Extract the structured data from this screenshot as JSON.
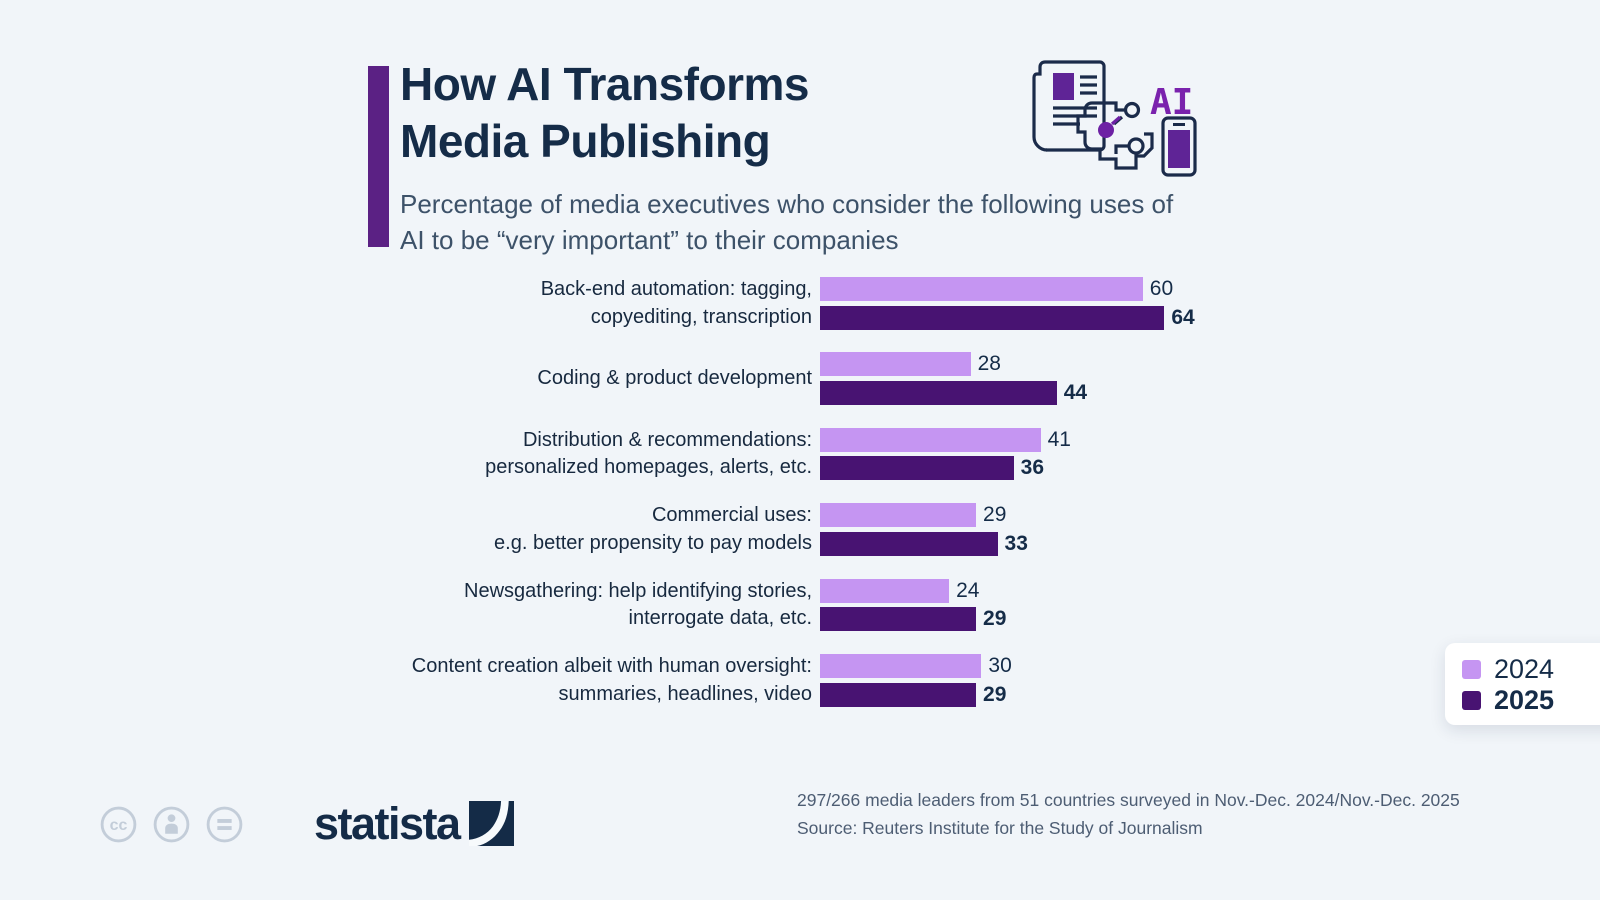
{
  "header": {
    "title_line1": "How AI Transforms",
    "title_line2": "Media Publishing",
    "subtitle": "Percentage of media executives who consider the following uses of AI to be “very important” to their companies"
  },
  "chart_data": {
    "type": "bar",
    "orientation": "horizontal",
    "categories": [
      [
        "Back-end automation: tagging,",
        "copyediting, transcription"
      ],
      [
        "Coding & product development"
      ],
      [
        "Distribution & recommendations:",
        "personalized homepages, alerts, etc."
      ],
      [
        "Commercial uses:",
        "e.g. better propensity to pay models"
      ],
      [
        "Newsgathering: help identifying stories,",
        "interrogate data, etc."
      ],
      [
        "Content creation albeit with human oversight:",
        "summaries, headlines, video"
      ]
    ],
    "series": [
      {
        "name": "2024",
        "color": "#c595f2",
        "bold_values": false,
        "values": [
          60,
          28,
          41,
          29,
          24,
          30
        ]
      },
      {
        "name": "2025",
        "color": "#481372",
        "bold_values": true,
        "values": [
          64,
          44,
          36,
          33,
          29,
          29
        ]
      }
    ],
    "value_axis_max": 64,
    "grid": false,
    "data_labels": true,
    "legend_position": "right",
    "unit": "percent of media executives"
  },
  "legend": {
    "items": [
      {
        "label": "2024",
        "color": "#c595f2",
        "bold": false
      },
      {
        "label": "2025",
        "color": "#481372",
        "bold": true
      }
    ]
  },
  "footer": {
    "note": "297/266 media leaders from 51 countries surveyed in Nov.-Dec. 2024/Nov.-Dec. 2025",
    "source": "Source: Reuters Institute for the Study of Journalism",
    "brand": "statista"
  },
  "icons": {
    "top_right": "ai-media-publishing-illustration",
    "license": [
      "cc-icon",
      "attribution-person-icon",
      "equals-icon"
    ],
    "brand_mark": "statista-swoosh-icon"
  },
  "colors": {
    "background": "#f1f5f9",
    "title": "#152c48",
    "subtitle": "#3d5269",
    "accent_bar": "#5b2184",
    "bar_2024": "#c595f2",
    "bar_2025": "#481372",
    "footer_text": "#4d5d73",
    "license_icon_gray": "#c3cdd9"
  }
}
